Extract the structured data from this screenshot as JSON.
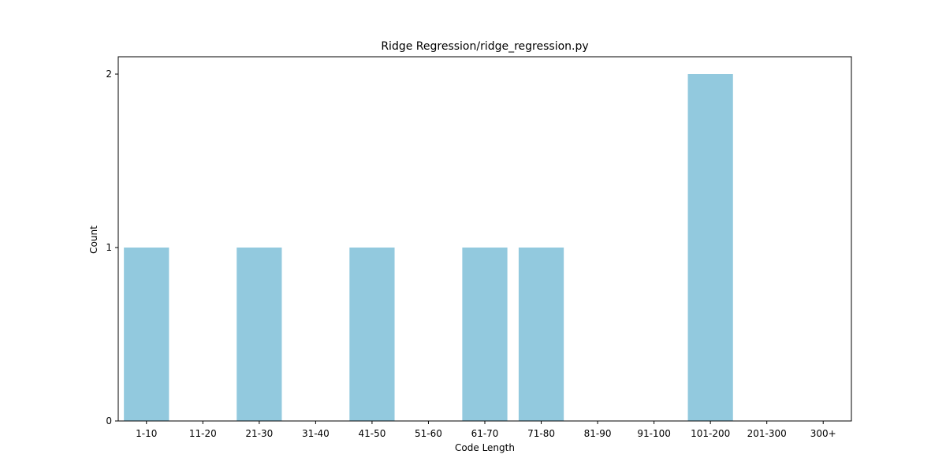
{
  "chart_data": {
    "type": "bar",
    "title": "Ridge Regression/ridge_regression.py",
    "xlabel": "Code Length",
    "ylabel": "Count",
    "categories": [
      "1-10",
      "11-20",
      "21-30",
      "31-40",
      "41-50",
      "51-60",
      "61-70",
      "71-80",
      "81-90",
      "91-100",
      "101-200",
      "201-300",
      "300+"
    ],
    "values": [
      1,
      0,
      1,
      0,
      1,
      0,
      1,
      1,
      0,
      0,
      2,
      0,
      0
    ],
    "ylim": [
      0,
      2.1
    ],
    "yticks": [
      "0",
      "1",
      "2"
    ],
    "grid": false,
    "legend": "none",
    "bar_color": "#92c9de"
  }
}
